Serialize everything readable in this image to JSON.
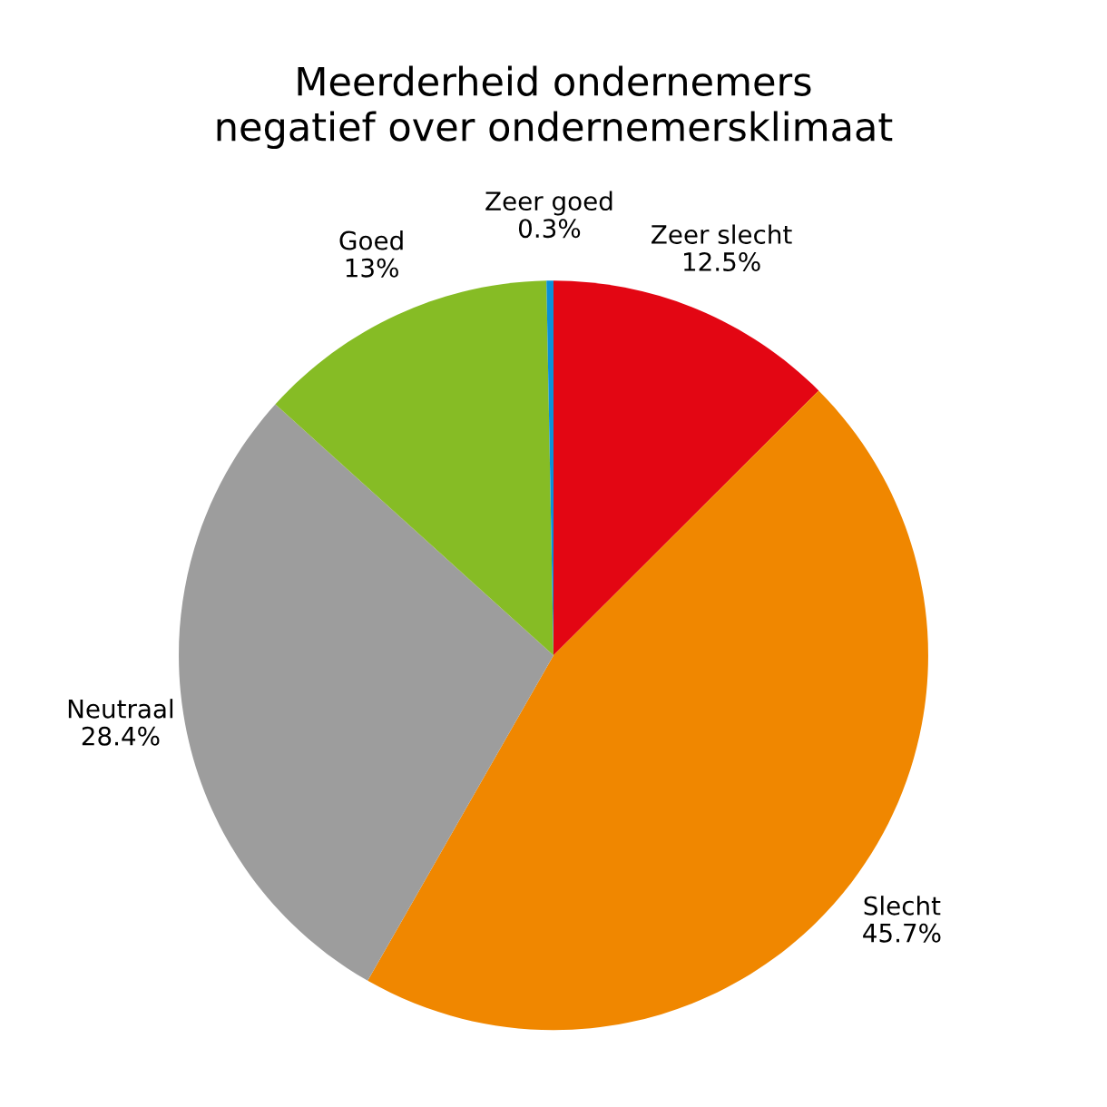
{
  "chart_data": {
    "type": "pie",
    "title": "Meerderheid ondernemers\nnegatief over ondernemersklimaat",
    "categories": [
      "Zeer slecht",
      "Slecht",
      "Neutraal",
      "Goed",
      "Zeer goed"
    ],
    "values": [
      12.5,
      45.7,
      28.4,
      13,
      0.3
    ],
    "value_labels": [
      "12.5%",
      "45.7%",
      "28.4%",
      "13%",
      "0.3%"
    ],
    "colors": [
      "#e30613",
      "#f08700",
      "#9d9d9d",
      "#86bc25",
      "#0a90d8"
    ],
    "legend": false
  }
}
